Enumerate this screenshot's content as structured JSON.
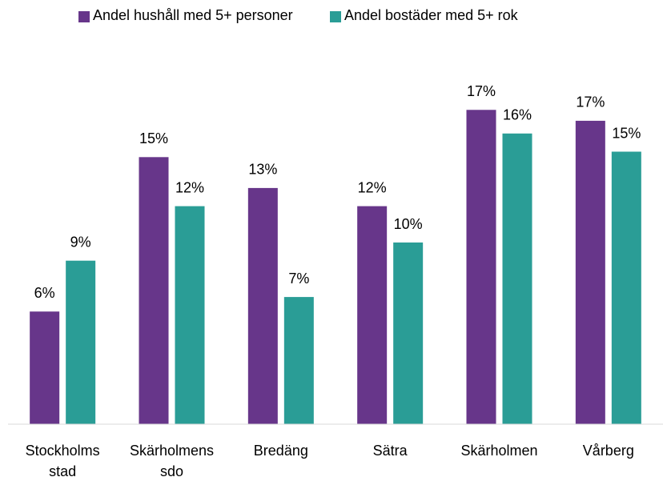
{
  "chart_data": {
    "type": "bar",
    "categories": [
      "Stockholms stad",
      "Skärholmens sdo",
      "Bredäng",
      "Sätra",
      "Skärholmen",
      "Vårberg"
    ],
    "series": [
      {
        "name": "Andel hushåll med 5+ personer",
        "color": "#67368a",
        "values": [
          6.2,
          14.7,
          13,
          12,
          17.3,
          16.7
        ],
        "value_labels": [
          "6%",
          "15%",
          "13%",
          "12%",
          "17%",
          "17%"
        ]
      },
      {
        "name": "Andel bostäder med 5+ rok",
        "color": "#2a9d96",
        "values": [
          9,
          12,
          7,
          10,
          16,
          15
        ],
        "value_labels": [
          "9%",
          "12%",
          "7%",
          "10%",
          "16%",
          "15%"
        ]
      }
    ],
    "ylim": [
      0,
      20
    ],
    "grid": false,
    "legend": "top"
  }
}
